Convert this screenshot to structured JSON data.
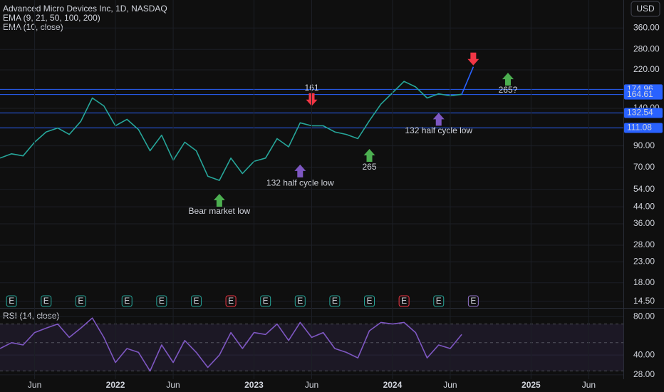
{
  "chart_data": [
    {
      "type": "line",
      "title": "Advanced Micro Devices Inc, 1D, NASDAQ",
      "indicators": [
        "EMA (9, 21, 50, 100, 200)",
        "EMA (10, close)"
      ],
      "currency": "USD",
      "log_scale": true,
      "xlim": [
        "2021-03",
        "2025-09"
      ],
      "ylim": [
        13.4,
        500
      ],
      "yticks": [
        {
          "value": 360,
          "label": "360.00"
        },
        {
          "value": 280,
          "label": "280.00"
        },
        {
          "value": 220,
          "label": "220.00"
        },
        {
          "value": 140,
          "label": "140.00"
        },
        {
          "value": 90,
          "label": "90.00"
        },
        {
          "value": 70,
          "label": "70.00"
        },
        {
          "value": 54,
          "label": "54.00"
        },
        {
          "value": 44,
          "label": "44.00"
        },
        {
          "value": 36,
          "label": "36.00"
        },
        {
          "value": 28,
          "label": "28.00"
        },
        {
          "value": 23,
          "label": "23.00"
        },
        {
          "value": 18,
          "label": "18.00"
        },
        {
          "value": 14.5,
          "label": "14.50"
        }
      ],
      "x": [
        "2021-03",
        "2021-04",
        "2021-05",
        "2021-06",
        "2021-07",
        "2021-08",
        "2021-09",
        "2021-10",
        "2021-11",
        "2021-12",
        "2022-01",
        "2022-02",
        "2022-03",
        "2022-04",
        "2022-05",
        "2022-06",
        "2022-07",
        "2022-08",
        "2022-09",
        "2022-10",
        "2022-11",
        "2022-12",
        "2023-01",
        "2023-02",
        "2023-03",
        "2023-04",
        "2023-05",
        "2023-06",
        "2023-07",
        "2023-08",
        "2023-09",
        "2023-10",
        "2023-11",
        "2023-12",
        "2024-01",
        "2024-02",
        "2024-03",
        "2024-04",
        "2024-05",
        "2024-06",
        "2024-07"
      ],
      "series": [
        {
          "color": "#26a69a",
          "values": [
            78,
            82,
            80,
            94,
            106,
            111,
            103,
            120,
            158,
            144,
            114,
            123,
            109,
            85,
            102,
            76,
            94,
            85,
            63,
            60,
            78,
            65,
            75,
            78,
            98,
            89,
            118,
            114,
            114,
            106,
            103,
            98,
            121,
            147,
            168,
            192,
            180,
            158,
            166,
            162,
            165
          ]
        },
        {
          "color": "#2962ff",
          "x": [
            "2024-07",
            "2024-08"
          ],
          "values": [
            165,
            228
          ]
        }
      ],
      "levels": [
        174.96,
        164.61,
        132.54,
        111.08
      ],
      "level_color": "#2962ff",
      "annotations": [
        {
          "text": "161",
          "x": "2023-06",
          "y": 177,
          "color": "#f23645"
        },
        {
          "text": "132 half cycle low",
          "x": "2023-05",
          "y": 58,
          "color": "#9575cd"
        },
        {
          "text": "Bear market low",
          "x": "2022-10",
          "y": 41.5,
          "color": "#26a69a"
        },
        {
          "text": "265",
          "x": "2023-11",
          "y": 70,
          "color": "#26a69a"
        },
        {
          "text": "132 half cycle low",
          "x": "2024-05",
          "y": 107,
          "color": "#9575cd"
        },
        {
          "text": "265?",
          "x": "2024-11",
          "y": 173,
          "color": "#26a69a"
        }
      ],
      "arrows": [
        {
          "x": "2023-06",
          "y": 155,
          "direction": "down",
          "color": "#f23645"
        },
        {
          "x": "2023-05",
          "y": 67,
          "direction": "up",
          "color": "#7e57c2"
        },
        {
          "x": "2022-10",
          "y": 47.5,
          "direction": "up",
          "color": "#4caf50"
        },
        {
          "x": "2023-11",
          "y": 80.5,
          "direction": "up",
          "color": "#4caf50"
        },
        {
          "x": "2024-05",
          "y": 123,
          "direction": "up",
          "color": "#7e57c2"
        },
        {
          "x": "2024-11",
          "y": 197,
          "direction": "up",
          "color": "#4caf50"
        },
        {
          "x": "2024-08",
          "y": 250,
          "direction": "down",
          "color": "#f23645"
        }
      ],
      "earnings": {
        "label": "E",
        "x": [
          "2021-04",
          "2021-07",
          "2021-10",
          "2022-02",
          "2022-05",
          "2022-08",
          "2022-11",
          "2023-02",
          "2023-05",
          "2023-08",
          "2023-11",
          "2024-02",
          "2024-05",
          "2024-08"
        ],
        "colors": [
          "#26a69a",
          "#26a69a",
          "#26a69a",
          "#26a69a",
          "#26a69a",
          "#26a69a",
          "#f23645",
          "#26a69a",
          "#26a69a",
          "#26a69a",
          "#26a69a",
          "#f23645",
          "#26a69a",
          "#9575cd"
        ]
      }
    },
    {
      "type": "line",
      "title": "RSI (14, close)",
      "log_scale": true,
      "xlim": [
        "2021-03",
        "2025-09"
      ],
      "ylim": [
        25.9,
        93.6
      ],
      "yticks": [
        {
          "value": 80,
          "label": "80.00"
        },
        {
          "value": 40,
          "label": "40.00"
        },
        {
          "value": 28,
          "label": "28.00"
        }
      ],
      "bands": [
        70,
        50,
        30
      ],
      "xticks": [
        {
          "value": "2021-06",
          "label": "Jun"
        },
        {
          "value": "2022-01",
          "label": "2022"
        },
        {
          "value": "2022-06",
          "label": "Jun"
        },
        {
          "value": "2023-01",
          "label": "2023"
        },
        {
          "value": "2023-06",
          "label": "Jun"
        },
        {
          "value": "2024-01",
          "label": "2024"
        },
        {
          "value": "2024-06",
          "label": "Jun"
        },
        {
          "value": "2025-01",
          "label": "2025"
        },
        {
          "value": "2025-06",
          "label": "Jun"
        }
      ],
      "x": [
        "2021-03",
        "2021-04",
        "2021-05",
        "2021-06",
        "2021-07",
        "2021-08",
        "2021-09",
        "2021-10",
        "2021-11",
        "2021-12",
        "2022-01",
        "2022-02",
        "2022-03",
        "2022-04",
        "2022-05",
        "2022-06",
        "2022-07",
        "2022-08",
        "2022-09",
        "2022-10",
        "2022-11",
        "2022-12",
        "2023-01",
        "2023-02",
        "2023-03",
        "2023-04",
        "2023-05",
        "2023-06",
        "2023-07",
        "2023-08",
        "2023-09",
        "2023-10",
        "2023-11",
        "2023-12",
        "2024-01",
        "2024-02",
        "2024-03",
        "2024-04",
        "2024-05",
        "2024-06",
        "2024-07"
      ],
      "series": [
        {
          "color": "#7e57c2",
          "values": [
            45,
            50,
            48,
            60,
            65,
            70,
            55,
            65,
            78,
            55,
            35,
            45,
            42,
            30,
            48,
            35,
            52,
            42,
            32,
            40,
            60,
            45,
            60,
            58,
            70,
            52,
            72,
            55,
            60,
            45,
            42,
            38,
            62,
            72,
            70,
            72,
            60,
            38,
            48,
            45,
            58
          ]
        }
      ]
    }
  ]
}
